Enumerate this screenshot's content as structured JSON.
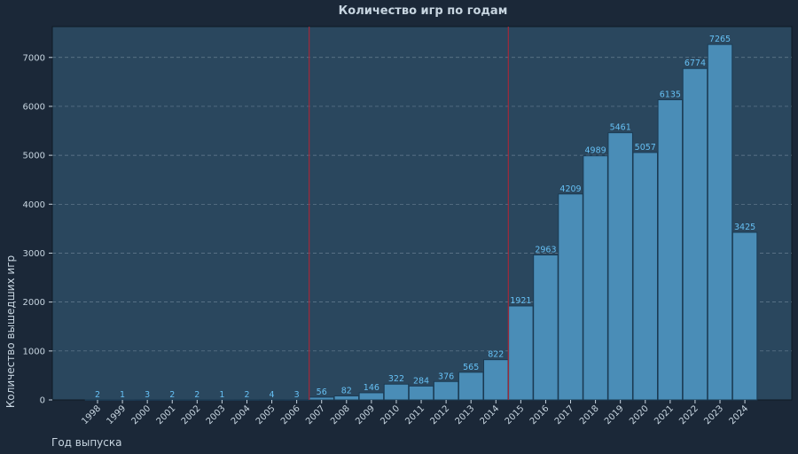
{
  "chart_data": {
    "type": "bar",
    "title": "Количество игр по годам",
    "xlabel": "Год выпуска",
    "ylabel": "Количество вышедших игр",
    "categories": [
      "1998",
      "1999",
      "2000",
      "2001",
      "2002",
      "2003",
      "2004",
      "2005",
      "2006",
      "2007",
      "2008",
      "2009",
      "2010",
      "2011",
      "2012",
      "2013",
      "2014",
      "2015",
      "2016",
      "2017",
      "2018",
      "2019",
      "2020",
      "2021",
      "2022",
      "2023",
      "2024"
    ],
    "values": [
      2,
      1,
      3,
      2,
      2,
      1,
      2,
      4,
      3,
      56,
      82,
      146,
      322,
      284,
      376,
      565,
      822,
      1921,
      2963,
      4209,
      4989,
      5461,
      5057,
      6135,
      6774,
      7265,
      3425
    ],
    "yticks": [
      0,
      1000,
      2000,
      3000,
      4000,
      5000,
      6000,
      7000
    ],
    "ylim": [
      0,
      7630
    ],
    "reference_lines": [
      "2006/2007",
      "2014/2015"
    ],
    "grid": true,
    "colors": {
      "background": "#1b2838",
      "plot_left": "#2a475e",
      "plot_right": "#2a475e",
      "bar": "#4a8db7",
      "value_label": "#66c0f4",
      "reference_line": "#a3293a"
    }
  }
}
